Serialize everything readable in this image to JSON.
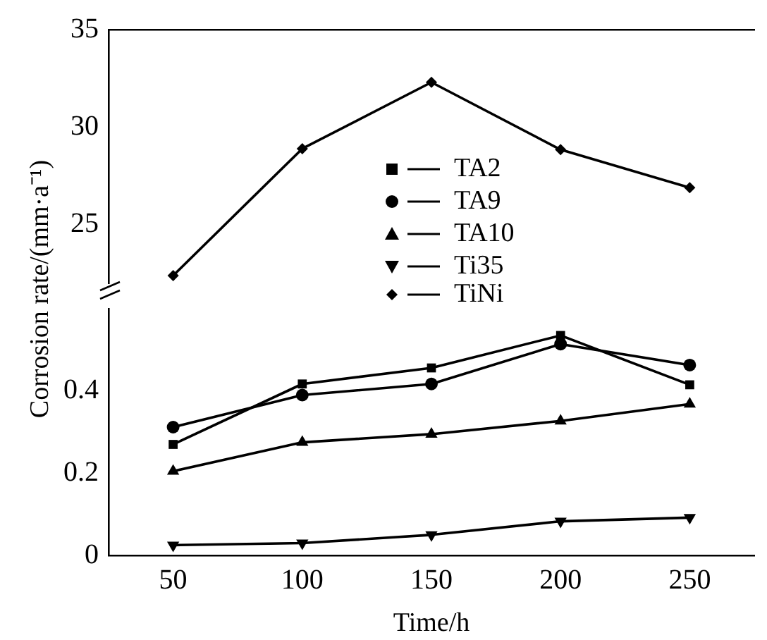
{
  "chart_data": [
    {
      "type": "line",
      "ylabel": "Corrosion rate/(mm·a⁻¹)",
      "x": [
        50,
        100,
        150,
        200,
        250
      ],
      "xlim": [
        25,
        275
      ],
      "ylim": [
        22,
        35
      ],
      "yticks": [
        25,
        30,
        35
      ],
      "tick_labels": "y",
      "grid": false,
      "legend": "bottom",
      "line_style": "solid",
      "series": [
        {
          "name": "TiNi",
          "color": "#000000",
          "marker": "diamond",
          "values": [
            22.4,
            28.9,
            32.3,
            28.85,
            26.9
          ]
        }
      ]
    },
    {
      "type": "line",
      "xlabel": "Time/h",
      "x": [
        50,
        100,
        150,
        200,
        250
      ],
      "xlim": [
        25,
        275
      ],
      "xticks": [
        50,
        100,
        150,
        200,
        250
      ],
      "ylim": [
        0,
        0.6
      ],
      "yticks": [
        0,
        0.2,
        0.4
      ],
      "grid": false,
      "legend": "top",
      "line_style": "solid",
      "series": [
        {
          "name": "TA2",
          "color": "#000000",
          "marker": "square",
          "values": [
            0.27,
            0.417,
            0.456,
            0.535,
            0.415
          ]
        },
        {
          "name": "TA9",
          "color": "#000000",
          "marker": "circle",
          "values": [
            0.312,
            0.39,
            0.417,
            0.514,
            0.463
          ]
        },
        {
          "name": "TA10",
          "color": "#000000",
          "marker": "triangle",
          "values": [
            0.205,
            0.275,
            0.295,
            0.327,
            0.368
          ]
        },
        {
          "name": "Ti35",
          "color": "#000000",
          "marker": "triangle-down",
          "values": [
            0.025,
            0.03,
            0.05,
            0.083,
            0.092
          ]
        }
      ]
    }
  ]
}
